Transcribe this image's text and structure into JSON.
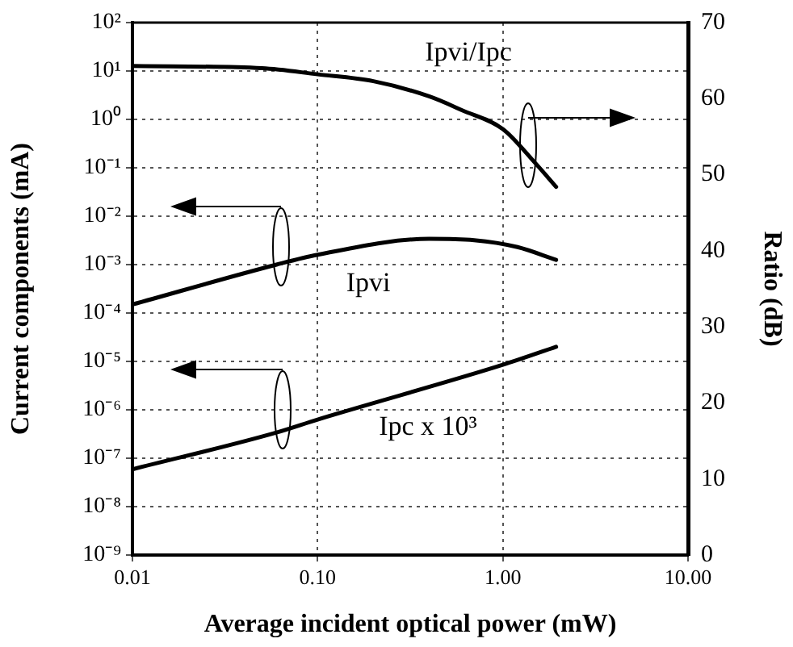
{
  "chart_data": {
    "type": "line",
    "xlabel": "Average incident optical power (mW)",
    "ylabel": "Current components (mA)",
    "y2label": "Ratio (dB)",
    "log": "xy",
    "grid": true,
    "legend": false,
    "marker": "none",
    "line_style": "solid",
    "xlim": [
      0.01,
      10
    ],
    "xticks": [
      {
        "value": 0.01,
        "label": "0.01"
      },
      {
        "value": 0.1,
        "label": "0.10"
      },
      {
        "value": 1,
        "label": "1.00"
      },
      {
        "value": 10,
        "label": "10.00"
      }
    ],
    "ylim": [
      1e-09,
      100
    ],
    "yticks": [
      {
        "value": 1e-09,
        "label": "10⁻⁹"
      },
      {
        "value": 1e-08,
        "label": "10⁻⁸"
      },
      {
        "value": 1e-07,
        "label": "10⁻⁷"
      },
      {
        "value": 1e-06,
        "label": "10⁻⁶"
      },
      {
        "value": 1e-05,
        "label": "10⁻⁵"
      },
      {
        "value": 0.0001,
        "label": "10⁻⁴"
      },
      {
        "value": 0.001,
        "label": "10⁻³"
      },
      {
        "value": 0.01,
        "label": "10⁻²"
      },
      {
        "value": 0.1,
        "label": "10⁻¹"
      },
      {
        "value": 1,
        "label": "10⁰"
      },
      {
        "value": 10,
        "label": "10¹"
      },
      {
        "value": 100,
        "label": "10²"
      }
    ],
    "y2lim": [
      0,
      70
    ],
    "y2ticks": [
      0,
      10,
      20,
      30,
      40,
      50,
      60,
      70
    ],
    "series": [
      {
        "name": "Ipvi/Ipc",
        "color": "#000000",
        "axis": "y2",
        "x": [
          0.01,
          0.05,
          0.1,
          0.2,
          0.4,
          0.6,
          1.0,
          1.5,
          1.94
        ],
        "values": [
          64.3,
          64,
          63.2,
          62.3,
          60.3,
          58.5,
          56,
          51.5,
          48.4
        ]
      },
      {
        "name": "Ipvi",
        "color": "#000000",
        "x": [
          0.01,
          0.06,
          0.1,
          0.4,
          0.7,
          1.2,
          1.94
        ],
        "values": [
          0.00015,
          0.001,
          0.0016,
          0.0034,
          0.0032,
          0.0023,
          0.00125
        ]
      },
      {
        "name": "Ipc x 10³",
        "color": "#000000",
        "x": [
          0.01,
          0.06,
          0.1,
          1.0,
          1.94
        ],
        "values": [
          5.9e-08,
          3.4e-07,
          6.3e-07,
          8.5e-06,
          2e-05
        ]
      }
    ]
  }
}
